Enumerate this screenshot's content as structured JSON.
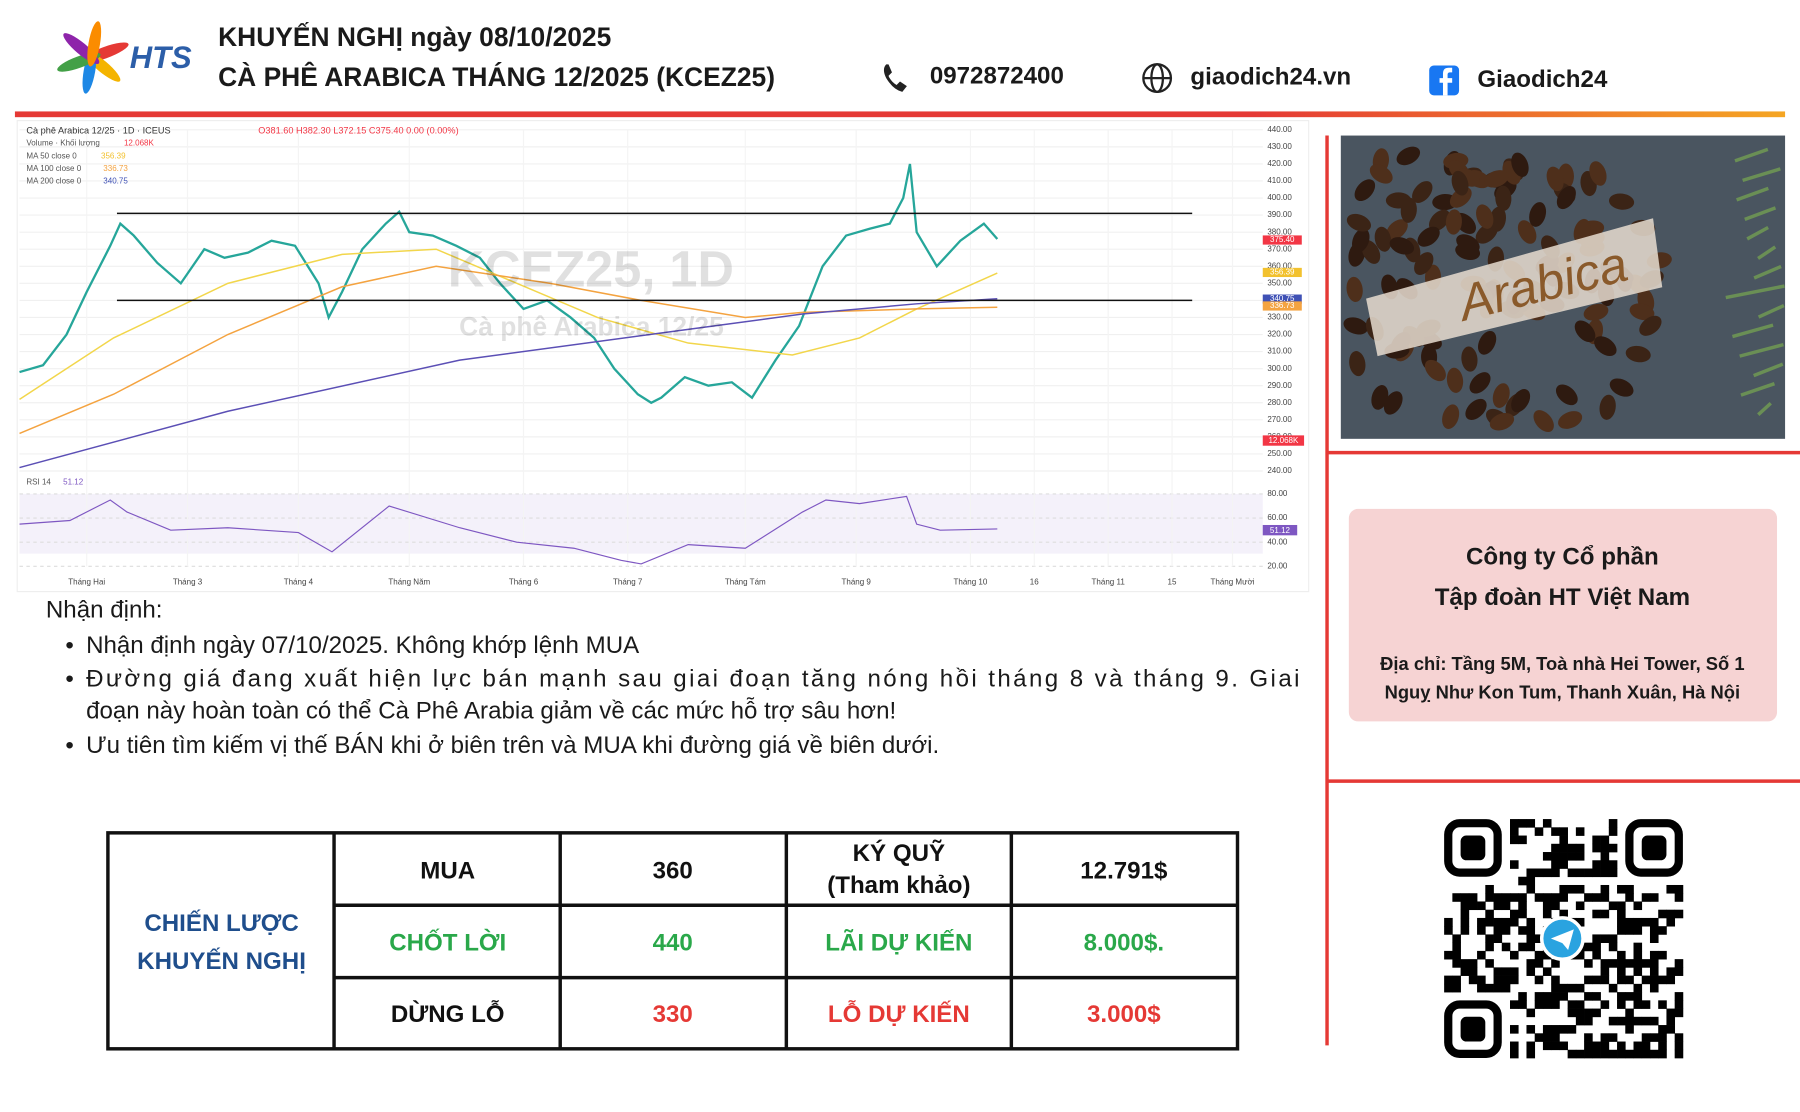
{
  "header": {
    "lines": [
      "KHUYẾN NGHỊ ngày 08/10/2025",
      "CÀ PHÊ ARABICA THÁNG 12/2025 (KCEZ25)"
    ],
    "logo": "HTS",
    "phone": "0972872400",
    "website": "giaodich24.vn",
    "facebook": "Giaodich24"
  },
  "chart_data": {
    "type": "candlestick-overview",
    "title": "Cà phê Arabica 12/25 · 1D · ICEUS",
    "ohlc": "O381.60 H382.30 L372.15 C375.40 0.00 (0.00%)",
    "legend": [
      "Volume · Khối lượng",
      "MA 50 close 0",
      "MA 100 close 0",
      "MA 200 close 0"
    ],
    "legend_values": [
      "12.068K",
      "356.39",
      "336.73",
      "340.75"
    ],
    "watermark": [
      "KCEZ25, 1D",
      "Cà phê Arabica 12/25"
    ],
    "xlim": [
      0,
      370
    ],
    "xticks": [
      {
        "value": 20,
        "label": "Tháng Hai"
      },
      {
        "value": 50,
        "label": "Tháng 3"
      },
      {
        "value": 83,
        "label": "Tháng 4"
      },
      {
        "value": 116,
        "label": "Tháng Năm"
      },
      {
        "value": 150,
        "label": "Tháng 6"
      },
      {
        "value": 181,
        "label": "Tháng 7"
      },
      {
        "value": 216,
        "label": "Tháng Tám"
      },
      {
        "value": 249,
        "label": "Tháng 9"
      },
      {
        "value": 283,
        "label": "Tháng 10"
      },
      {
        "value": 302,
        "label": "16"
      },
      {
        "value": 324,
        "label": "Tháng 11"
      },
      {
        "value": 343,
        "label": "15"
      },
      {
        "value": 361,
        "label": "Tháng Mười"
      }
    ],
    "ylim": [
      240,
      440
    ],
    "yticks": [
      {
        "value": 240,
        "label": "240.00"
      },
      {
        "value": 250,
        "label": "250.00"
      },
      {
        "value": 260,
        "label": "260.00"
      },
      {
        "value": 270,
        "label": "270.00"
      },
      {
        "value": 280,
        "label": "280.00"
      },
      {
        "value": 290,
        "label": "290.00"
      },
      {
        "value": 300,
        "label": "300.00"
      },
      {
        "value": 310,
        "label": "310.00"
      },
      {
        "value": 320,
        "label": "320.00"
      },
      {
        "value": 330,
        "label": "330.00"
      },
      {
        "value": 340,
        "label": "340.00"
      },
      {
        "value": 350,
        "label": "350.00"
      },
      {
        "value": 360,
        "label": "360.00"
      },
      {
        "value": 370,
        "label": "370.00"
      },
      {
        "value": 380,
        "label": "380.00"
      },
      {
        "value": 390,
        "label": "390.00"
      },
      {
        "value": 400,
        "label": "400.00"
      },
      {
        "value": 410,
        "label": "410.00"
      },
      {
        "value": 420,
        "label": "420.00"
      },
      {
        "value": 430,
        "label": "430.00"
      },
      {
        "value": 440,
        "label": "440.00"
      }
    ],
    "series": [
      {
        "color": "#26a69a",
        "x": [
          0,
          7,
          14,
          20,
          27,
          30,
          34,
          41,
          48,
          55,
          61,
          68,
          75,
          82,
          89,
          92,
          96,
          102,
          109,
          113,
          116,
          123,
          130,
          137,
          143,
          150,
          157,
          164,
          171,
          177,
          184,
          188,
          191,
          198,
          205,
          212,
          218,
          225,
          232,
          239,
          246,
          253,
          259,
          263,
          265,
          267,
          273,
          280,
          287,
          291
        ],
        "values": [
          298,
          302,
          320,
          345,
          372,
          385,
          378,
          362,
          350,
          370,
          365,
          368,
          375,
          372,
          350,
          330,
          345,
          370,
          385,
          392,
          380,
          378,
          372,
          365,
          350,
          335,
          340,
          330,
          318,
          300,
          285,
          280,
          283,
          295,
          290,
          292,
          283,
          305,
          325,
          360,
          378,
          382,
          385,
          400,
          420,
          380,
          360,
          375,
          385,
          376
        ]
      },
      {
        "color": "#f2d64b",
        "x": [
          0,
          28,
          62,
          96,
          124,
          148,
          172,
          199,
          230,
          250,
          267,
          291
        ],
        "values": [
          282,
          318,
          350,
          367,
          370,
          350,
          330,
          315,
          308,
          318,
          335,
          356
        ]
      },
      {
        "color": "#f4a340",
        "x": [
          0,
          28,
          62,
          96,
          124,
          158,
          185,
          216,
          233,
          267,
          291
        ],
        "values": [
          262,
          285,
          320,
          348,
          360,
          350,
          340,
          330,
          333,
          335,
          336
        ]
      },
      {
        "color": "#5b4fb5",
        "x": [
          0,
          62,
          131,
          199,
          233,
          267,
          291
        ],
        "values": [
          242,
          275,
          305,
          323,
          332,
          338,
          341
        ]
      }
    ],
    "levels": [
      391,
      340
    ],
    "level_span": [
      29,
      349
    ],
    "last_values": [
      {
        "value": 375.4,
        "label": "375.40",
        "color": "#f23645"
      },
      {
        "value": 356.39,
        "label": "356.39",
        "color": "#f2c12e"
      },
      {
        "value": 340.75,
        "label": "340.75",
        "color": "#3f51b5"
      },
      {
        "value": 336.73,
        "label": "336.73",
        "color": "#f4a340"
      }
    ],
    "volume_badge": "12.068K",
    "rsi": {
      "legend": "RSI 14",
      "legend_value": "51.12",
      "ylim": [
        20,
        80
      ],
      "yticks": [
        {
          "value": 20,
          "label": "20.00"
        },
        {
          "value": 40,
          "label": "40.00"
        },
        {
          "value": 60,
          "label": "60.00"
        },
        {
          "value": 80,
          "label": "80.00"
        }
      ],
      "x": [
        0,
        15,
        27,
        32,
        45,
        62,
        83,
        93,
        110,
        131,
        148,
        165,
        179,
        185,
        199,
        216,
        233,
        240,
        250,
        264,
        267,
        274,
        291
      ],
      "values": [
        55,
        58,
        75,
        65,
        50,
        52,
        48,
        32,
        70,
        52,
        40,
        35,
        25,
        22,
        38,
        35,
        65,
        75,
        72,
        78,
        55,
        50,
        51
      ],
      "color": "#7e57c2"
    }
  },
  "analysis": {
    "heading": "Nhận định:",
    "bullets": [
      [
        "Nhận định ngày 07/10/2025. Không khớp lệnh MUA"
      ],
      [
        "Đường giá đang xuất hiện lực bán mạnh sau giai đoạn tăng nóng hồi tháng 8 và tháng 9. Giai",
        "đoạn này hoàn toàn có thể Cà Phê Arabia giảm về các mức hỗ trợ sâu hơn!"
      ],
      [
        "Ưu tiên tìm kiếm vị thế BÁN khi ở biên trên và MUA khi đường giá về biên dưới."
      ]
    ]
  },
  "table": {
    "label": [
      "CHIẾN LƯỢC",
      "KHUYẾN NGHỊ"
    ],
    "rows": [
      [
        "MUA",
        "360",
        [
          "KÝ QUỸ",
          "(Tham khảo)"
        ],
        "12.791$"
      ],
      [
        "CHỐT LỜI",
        "440",
        [
          "LÃI DỰ KIẾN"
        ],
        "8.000$."
      ],
      [
        "DỪNG LỖ",
        "330",
        [
          "LỖ DỰ KIẾN"
        ],
        "3.000$"
      ]
    ]
  },
  "photo_label": "Arabica",
  "company": {
    "name": [
      "Công ty Cổ phần",
      "Tập đoàn HT Việt Nam"
    ],
    "address": [
      "Địa chỉ: Tầng 5M, Toà nhà Hei Tower, Số 1",
      "Nguỵ Như Kon Tum, Thanh Xuân, Hà Nội"
    ]
  }
}
